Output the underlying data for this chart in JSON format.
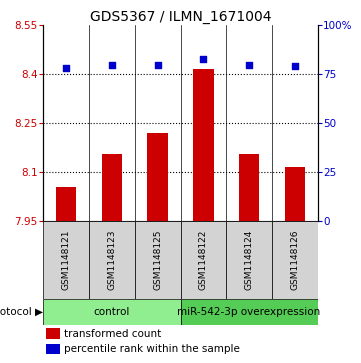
{
  "title": "GDS5367 / ILMN_1671004",
  "samples": [
    "GSM1148121",
    "GSM1148123",
    "GSM1148125",
    "GSM1148122",
    "GSM1148124",
    "GSM1148126"
  ],
  "bar_values": [
    8.055,
    8.155,
    8.22,
    8.415,
    8.155,
    8.115
  ],
  "percentile_values": [
    78,
    80,
    80,
    83,
    80,
    79
  ],
  "ylim_left": [
    7.95,
    8.55
  ],
  "ylim_right": [
    0,
    100
  ],
  "yticks_left": [
    7.95,
    8.1,
    8.25,
    8.4,
    8.55
  ],
  "yticks_right": [
    0,
    25,
    50,
    75,
    100
  ],
  "ytick_labels_left": [
    "7.95",
    "8.1",
    "8.25",
    "8.4",
    "8.55"
  ],
  "ytick_labels_right": [
    "0",
    "25",
    "50",
    "75",
    "100%"
  ],
  "hlines": [
    8.1,
    8.25,
    8.4
  ],
  "bar_color": "#cc0000",
  "dot_color": "#0000cc",
  "bar_baseline": 7.95,
  "groups": [
    {
      "label": "control",
      "start": 0,
      "end": 3,
      "color": "#90ee90"
    },
    {
      "label": "miR-542-3p overexpression",
      "start": 3,
      "end": 6,
      "color": "#55cc55"
    }
  ],
  "protocol_label": "protocol",
  "legend_bar_label": "transformed count",
  "legend_dot_label": "percentile rank within the sample",
  "title_fontsize": 10,
  "tick_fontsize": 7.5,
  "sample_fontsize": 6.5,
  "group_fontsize": 7.5,
  "legend_fontsize": 7.5
}
